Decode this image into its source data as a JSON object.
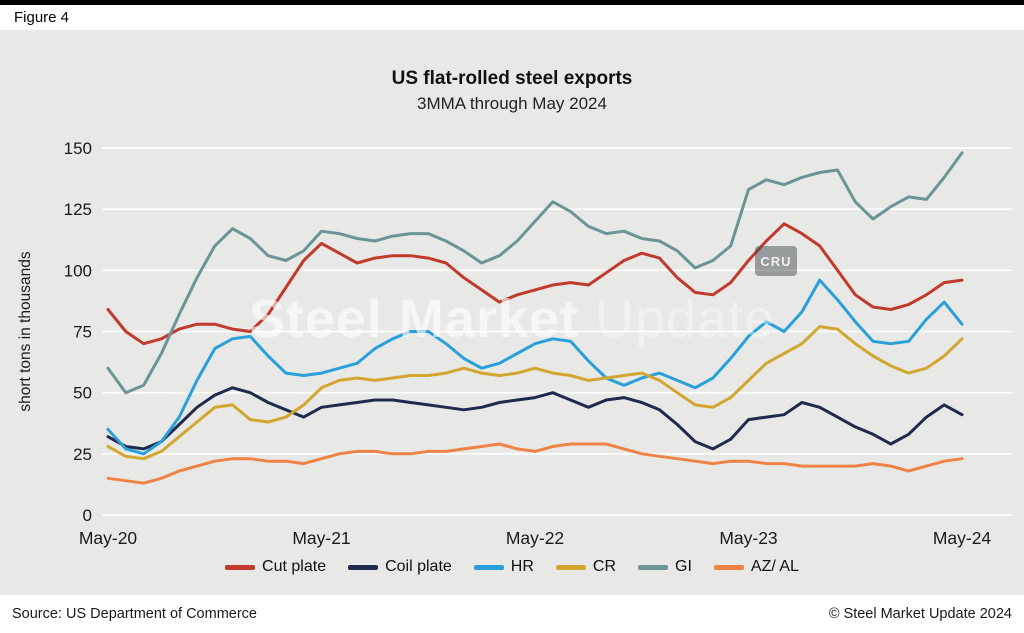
{
  "figure_label": "Figure 4",
  "title": "US flat-rolled steel exports",
  "subtitle": "3MMA through May 2024",
  "watermark": {
    "bold": "Steel Market",
    "light": "Update"
  },
  "cru_badge": "CRU",
  "footer": {
    "source": "Source: US Department of Commerce",
    "copyright": "© Steel Market Update 2024"
  },
  "chart_data": {
    "type": "line",
    "title": "US flat-rolled steel exports",
    "subtitle": "3MMA through May 2024",
    "ylabel": "short tons in thousands",
    "ylim": [
      0,
      150
    ],
    "yticks": [
      0,
      25,
      50,
      75,
      100,
      125,
      150
    ],
    "x_unit": "month",
    "n_points": 49,
    "xtick_labels": [
      "May-20",
      "May-21",
      "May-22",
      "May-23",
      "May-24"
    ],
    "xtick_positions": [
      0,
      12,
      24,
      36,
      48
    ],
    "grid": "horizontal",
    "legend_position": "bottom",
    "series": [
      {
        "name": "Cut plate",
        "color": "#c13a2c",
        "values": [
          84,
          75,
          70,
          72,
          76,
          78,
          78,
          76,
          75,
          82,
          93,
          104,
          111,
          107,
          103,
          105,
          106,
          106,
          105,
          103,
          97,
          92,
          87,
          90,
          92,
          94,
          95,
          94,
          99,
          104,
          107,
          105,
          97,
          91,
          90,
          95,
          104,
          112,
          119,
          115,
          110,
          100,
          90,
          85,
          84,
          86,
          90,
          95,
          96
        ]
      },
      {
        "name": "Coil plate",
        "color": "#1f2a4e",
        "values": [
          32,
          28,
          27,
          30,
          37,
          44,
          49,
          52,
          50,
          46,
          43,
          40,
          44,
          45,
          46,
          47,
          47,
          46,
          45,
          44,
          43,
          44,
          46,
          47,
          48,
          50,
          47,
          44,
          47,
          48,
          46,
          43,
          37,
          30,
          27,
          31,
          39,
          40,
          41,
          46,
          44,
          40,
          36,
          33,
          29,
          33,
          40,
          45,
          41
        ]
      },
      {
        "name": "HR",
        "color": "#2aa0da",
        "values": [
          35,
          27,
          25,
          30,
          40,
          55,
          68,
          72,
          73,
          65,
          58,
          57,
          58,
          60,
          62,
          68,
          72,
          75,
          75,
          70,
          64,
          60,
          62,
          66,
          70,
          72,
          71,
          63,
          56,
          53,
          56,
          58,
          55,
          52,
          56,
          64,
          73,
          79,
          75,
          83,
          96,
          88,
          79,
          71,
          70,
          71,
          80,
          87,
          78
        ]
      },
      {
        "name": "CR",
        "color": "#d2a62f",
        "values": [
          28,
          24,
          23,
          26,
          32,
          38,
          44,
          45,
          39,
          38,
          40,
          45,
          52,
          55,
          56,
          55,
          56,
          57,
          57,
          58,
          60,
          58,
          57,
          58,
          60,
          58,
          57,
          55,
          56,
          57,
          58,
          55,
          50,
          45,
          44,
          48,
          55,
          62,
          66,
          70,
          77,
          76,
          70,
          65,
          61,
          58,
          60,
          65,
          72
        ]
      },
      {
        "name": "GI",
        "color": "#6a9596",
        "values": [
          60,
          50,
          53,
          66,
          82,
          97,
          110,
          117,
          113,
          106,
          104,
          108,
          116,
          115,
          113,
          112,
          114,
          115,
          115,
          112,
          108,
          103,
          106,
          112,
          120,
          128,
          124,
          118,
          115,
          116,
          113,
          112,
          108,
          101,
          104,
          110,
          133,
          137,
          135,
          138,
          140,
          141,
          128,
          121,
          126,
          130,
          129,
          138,
          148
        ]
      },
      {
        "name": "AZ/ AL",
        "color": "#ef8345",
        "values": [
          15,
          14,
          13,
          15,
          18,
          20,
          22,
          23,
          23,
          22,
          22,
          21,
          23,
          25,
          26,
          26,
          25,
          25,
          26,
          26,
          27,
          28,
          29,
          27,
          26,
          28,
          29,
          29,
          29,
          27,
          25,
          24,
          23,
          22,
          21,
          22,
          22,
          21,
          21,
          20,
          20,
          20,
          20,
          21,
          20,
          18,
          20,
          22,
          23
        ]
      }
    ]
  }
}
